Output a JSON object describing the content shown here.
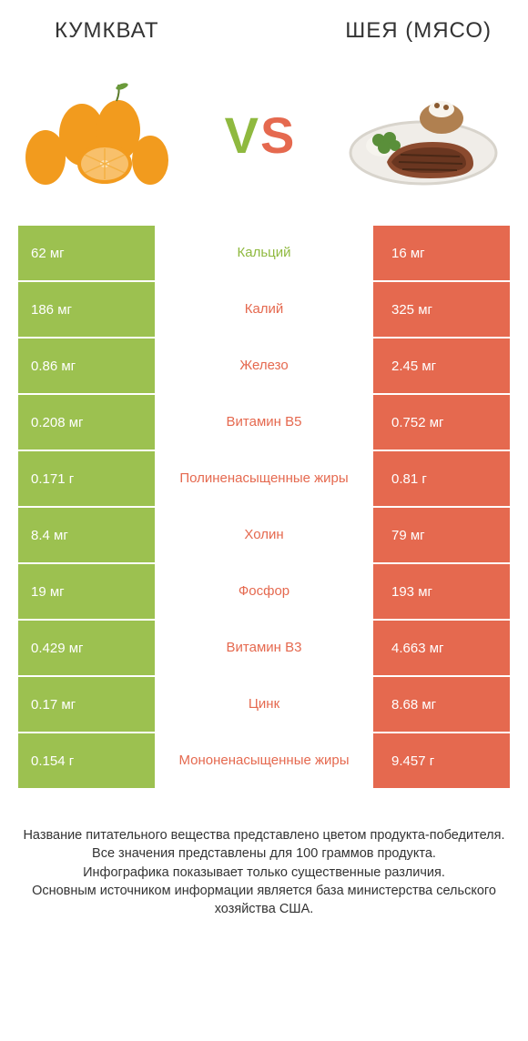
{
  "titles": {
    "left": "КУМКВАТ",
    "right": "ШЕЯ (МЯСО)"
  },
  "vs": {
    "v": "V",
    "s": "S"
  },
  "colors": {
    "green": "#9cc150",
    "orange": "#e5694f",
    "green_text": "#8fb93f",
    "orange_text": "#e5694f",
    "kumquat_body": "#f29b1e",
    "kumquat_inner": "#f8c06b",
    "plate": "#f0ede8",
    "plate_rim": "#d8d4cc",
    "meat": "#8b4a2e",
    "meat_dark": "#6a3620",
    "broccoli": "#5a8f3a",
    "potato": "#b08050",
    "cream": "#f8f4ec"
  },
  "rows": [
    {
      "left": "62 мг",
      "mid": "Кальций",
      "right": "16 мг",
      "winner": "left"
    },
    {
      "left": "186 мг",
      "mid": "Калий",
      "right": "325 мг",
      "winner": "right"
    },
    {
      "left": "0.86 мг",
      "mid": "Железо",
      "right": "2.45 мг",
      "winner": "right"
    },
    {
      "left": "0.208 мг",
      "mid": "Витамин B5",
      "right": "0.752 мг",
      "winner": "right"
    },
    {
      "left": "0.171 г",
      "mid": "Полиненасыщенные жиры",
      "right": "0.81 г",
      "winner": "right"
    },
    {
      "left": "8.4 мг",
      "mid": "Холин",
      "right": "79 мг",
      "winner": "right"
    },
    {
      "left": "19 мг",
      "mid": "Фосфор",
      "right": "193 мг",
      "winner": "right"
    },
    {
      "left": "0.429 мг",
      "mid": "Витамин B3",
      "right": "4.663 мг",
      "winner": "right"
    },
    {
      "left": "0.17 мг",
      "mid": "Цинк",
      "right": "8.68 мг",
      "winner": "right"
    },
    {
      "left": "0.154 г",
      "mid": "Мононенасыщенные жиры",
      "right": "9.457 г",
      "winner": "right"
    }
  ],
  "footer": {
    "l1": "Название питательного вещества представлено цветом продукта-победителя.",
    "l2": "Все значения представлены для 100 граммов продукта.",
    "l3": "Инфографика показывает только существенные различия.",
    "l4": "Основным источником информации является база министерства сельского хозяйства США."
  }
}
